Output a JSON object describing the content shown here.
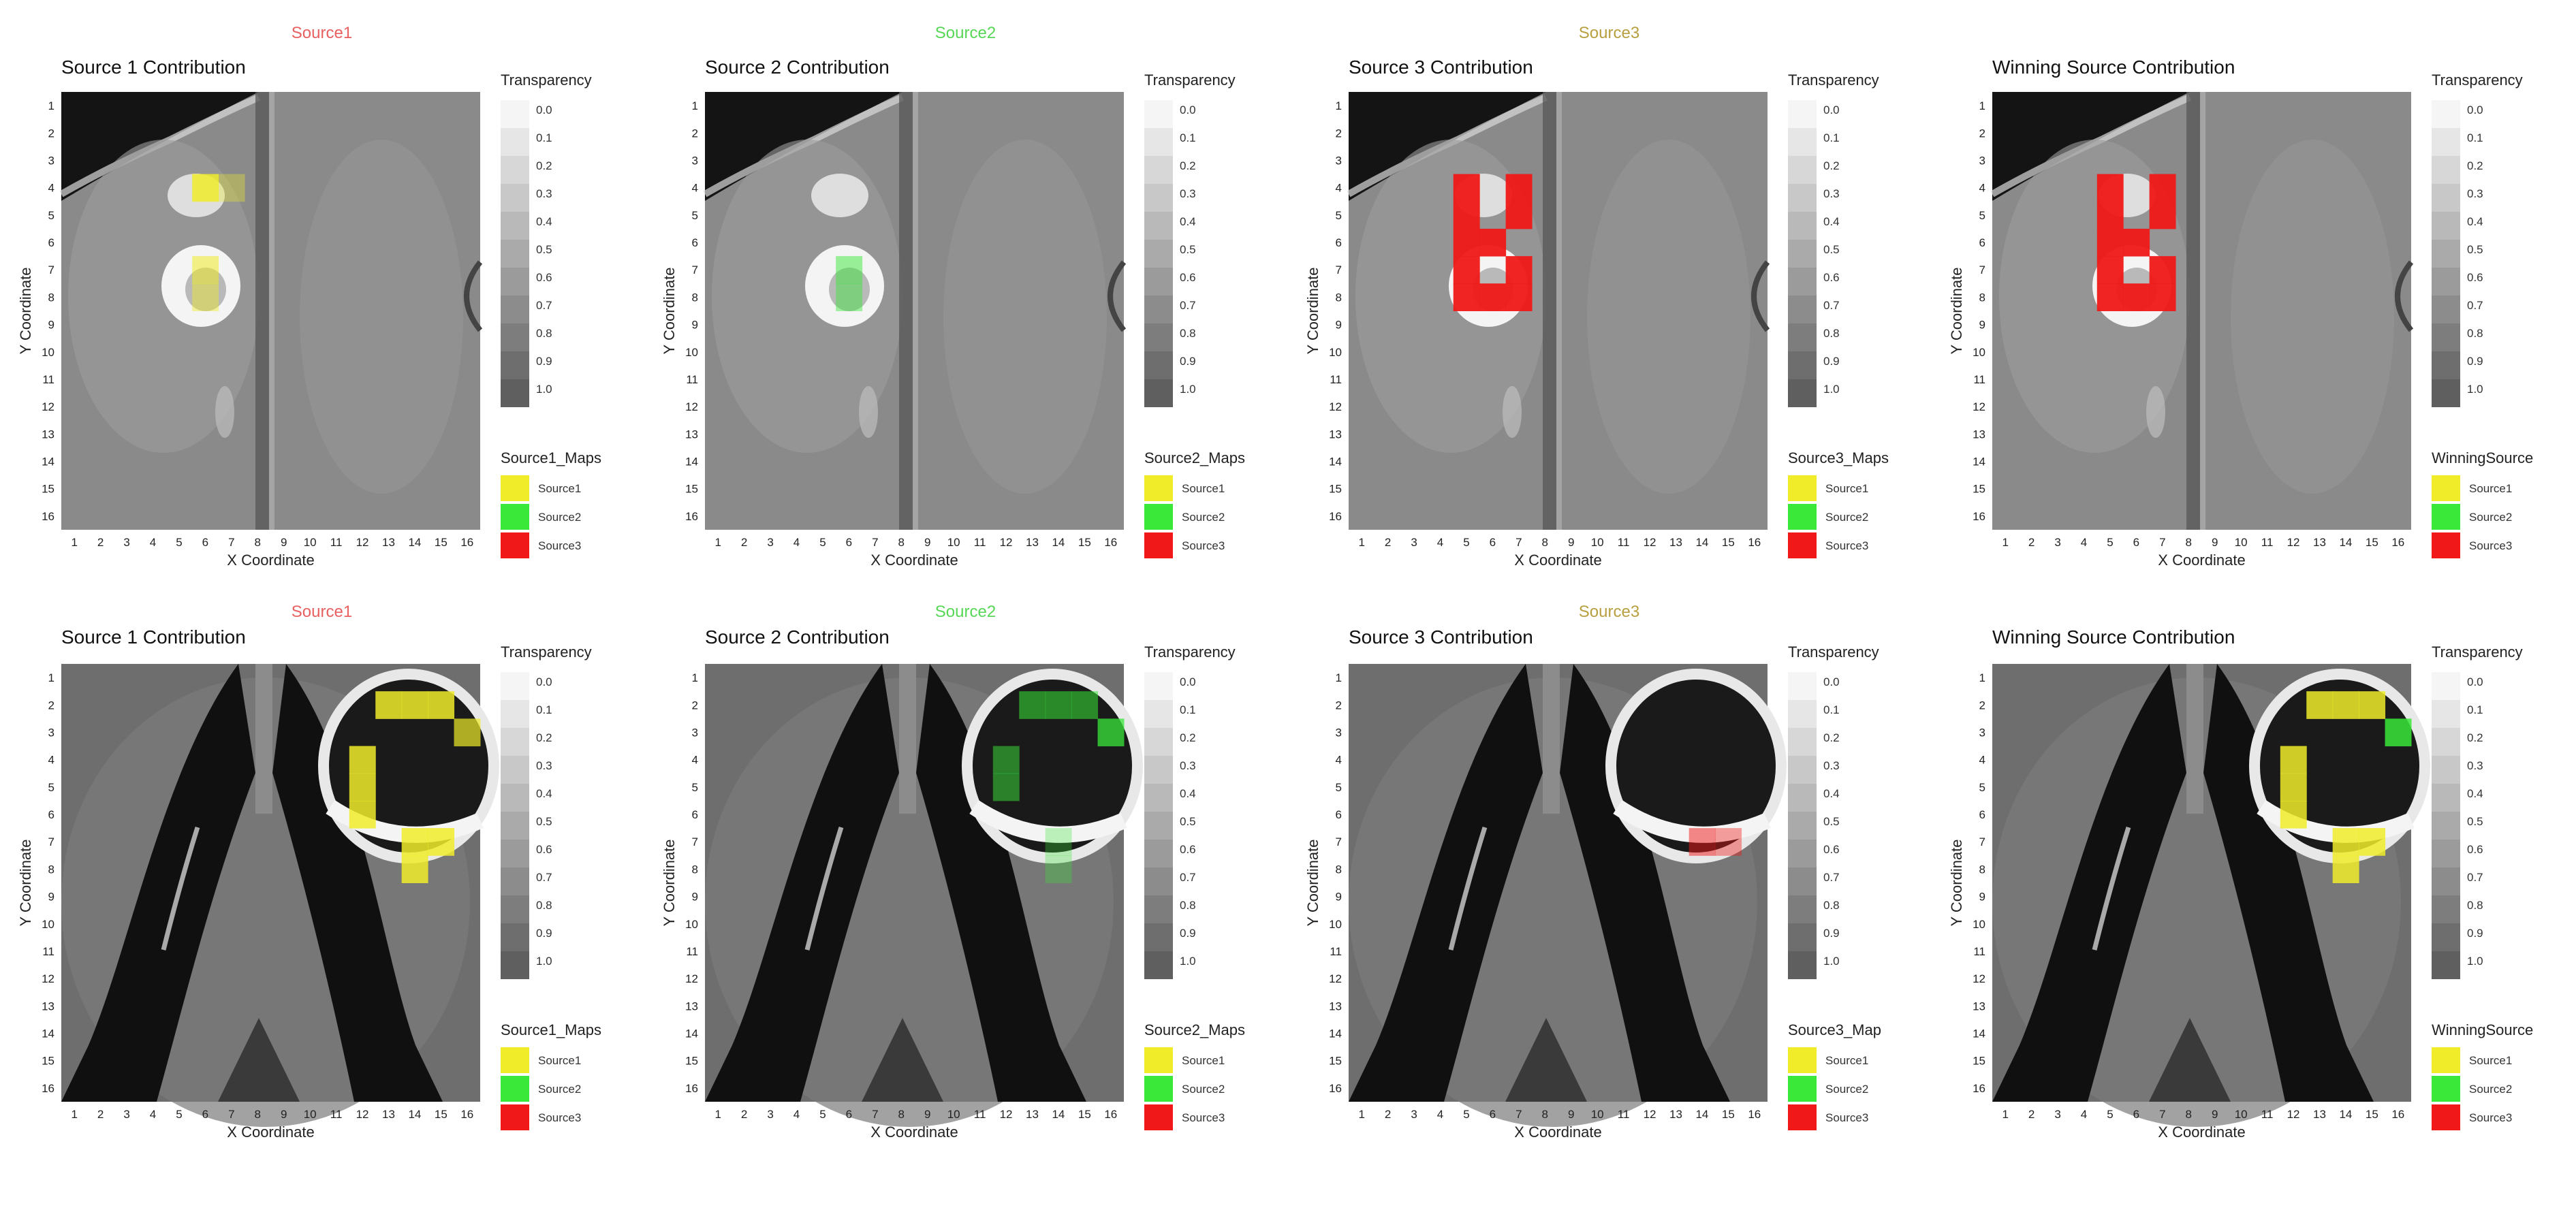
{
  "colors": {
    "Source1": "#f0ec2a",
    "Source2": "#39e839",
    "Source3": "#f01818",
    "source_title_1": "#e86060",
    "source_title_2": "#56d856",
    "source_title_3": "#b8a040"
  },
  "legend_common": {
    "transparency_title": "Transparency",
    "transparency_levels": [
      "0.0",
      "0.1",
      "0.2",
      "0.3",
      "0.4",
      "0.5",
      "0.6",
      "0.7",
      "0.8",
      "0.9",
      "1.0"
    ],
    "source_items": [
      "Source1",
      "Source2",
      "Source3"
    ],
    "xlabel": "X Coordinate",
    "ylabel": "Y Coordinate",
    "x_ticks": [
      "1",
      "2",
      "3",
      "4",
      "5",
      "6",
      "7",
      "8",
      "9",
      "10",
      "11",
      "12",
      "13",
      "14",
      "15",
      "16"
    ],
    "y_ticks": [
      "1",
      "2",
      "3",
      "4",
      "5",
      "6",
      "7",
      "8",
      "9",
      "10",
      "11",
      "12",
      "13",
      "14",
      "15",
      "16"
    ]
  },
  "chart_data": [
    {
      "type": "heatmap",
      "row": 1,
      "col": 1,
      "background": "mri-top",
      "source_title": "Source1",
      "source_key": "Source1",
      "title": "Source 1 Contribution",
      "map_legend_title": "Source1_Maps",
      "xlim": [
        1,
        16
      ],
      "ylim": [
        1,
        16
      ],
      "cells": [
        {
          "x": 6,
          "y": 4,
          "source": "Source1",
          "alpha": 0.85
        },
        {
          "x": 7,
          "y": 4,
          "source": "Source1",
          "alpha": 0.35
        },
        {
          "x": 6,
          "y": 7,
          "source": "Source1",
          "alpha": 0.55
        },
        {
          "x": 6,
          "y": 8,
          "source": "Source1",
          "alpha": 0.45
        }
      ]
    },
    {
      "type": "heatmap",
      "row": 1,
      "col": 2,
      "background": "mri-top",
      "source_title": "Source2",
      "source_key": "Source2",
      "title": "Source 2 Contribution",
      "map_legend_title": "Source2_Maps",
      "xlim": [
        1,
        16
      ],
      "ylim": [
        1,
        16
      ],
      "cells": [
        {
          "x": 6,
          "y": 7,
          "source": "Source2",
          "alpha": 0.5
        },
        {
          "x": 6,
          "y": 8,
          "source": "Source2",
          "alpha": 0.45
        }
      ]
    },
    {
      "type": "heatmap",
      "row": 1,
      "col": 3,
      "background": "mri-top",
      "source_title": "Source3",
      "source_key": "Source3",
      "title": "Source 3 Contribution",
      "map_legend_title": "Source3_Maps",
      "xlim": [
        1,
        16
      ],
      "ylim": [
        1,
        16
      ],
      "cells": [
        {
          "x": 5,
          "y": 4,
          "source": "Source3",
          "alpha": 0.95
        },
        {
          "x": 7,
          "y": 4,
          "source": "Source3",
          "alpha": 0.95
        },
        {
          "x": 5,
          "y": 5,
          "source": "Source3",
          "alpha": 0.95
        },
        {
          "x": 7,
          "y": 5,
          "source": "Source3",
          "alpha": 0.95
        },
        {
          "x": 5,
          "y": 6,
          "source": "Source3",
          "alpha": 0.95
        },
        {
          "x": 6,
          "y": 6,
          "source": "Source3",
          "alpha": 0.95
        },
        {
          "x": 5,
          "y": 7,
          "source": "Source3",
          "alpha": 0.95
        },
        {
          "x": 7,
          "y": 7,
          "source": "Source3",
          "alpha": 0.95
        },
        {
          "x": 5,
          "y": 8,
          "source": "Source3",
          "alpha": 0.95
        },
        {
          "x": 6,
          "y": 8,
          "source": "Source3",
          "alpha": 0.95
        },
        {
          "x": 7,
          "y": 8,
          "source": "Source3",
          "alpha": 0.95
        }
      ]
    },
    {
      "type": "heatmap",
      "row": 1,
      "col": 4,
      "background": "mri-top",
      "source_title": "",
      "source_key": "",
      "title": "Winning Source Contribution",
      "map_legend_title": "WinningSource",
      "xlim": [
        1,
        16
      ],
      "ylim": [
        1,
        16
      ],
      "cells": [
        {
          "x": 5,
          "y": 4,
          "source": "Source3",
          "alpha": 0.95
        },
        {
          "x": 7,
          "y": 4,
          "source": "Source3",
          "alpha": 0.95
        },
        {
          "x": 5,
          "y": 5,
          "source": "Source3",
          "alpha": 0.95
        },
        {
          "x": 7,
          "y": 5,
          "source": "Source3",
          "alpha": 0.95
        },
        {
          "x": 5,
          "y": 6,
          "source": "Source3",
          "alpha": 0.95
        },
        {
          "x": 6,
          "y": 6,
          "source": "Source3",
          "alpha": 0.95
        },
        {
          "x": 5,
          "y": 7,
          "source": "Source3",
          "alpha": 0.95
        },
        {
          "x": 7,
          "y": 7,
          "source": "Source3",
          "alpha": 0.95
        },
        {
          "x": 5,
          "y": 8,
          "source": "Source3",
          "alpha": 0.95
        },
        {
          "x": 6,
          "y": 8,
          "source": "Source3",
          "alpha": 0.95
        },
        {
          "x": 7,
          "y": 8,
          "source": "Source3",
          "alpha": 0.95
        }
      ]
    },
    {
      "type": "heatmap",
      "row": 2,
      "col": 1,
      "background": "mri-bottom",
      "source_title": "Source1",
      "source_key": "Source1",
      "title": "Source 1 Contribution",
      "map_legend_title": "Source1_Maps",
      "xlim": [
        1,
        16
      ],
      "ylim": [
        1,
        16
      ],
      "cells": [
        {
          "x": 13,
          "y": 2,
          "source": "Source1",
          "alpha": 0.85
        },
        {
          "x": 14,
          "y": 2,
          "source": "Source1",
          "alpha": 0.85
        },
        {
          "x": 15,
          "y": 2,
          "source": "Source1",
          "alpha": 0.85
        },
        {
          "x": 16,
          "y": 3,
          "source": "Source1",
          "alpha": 0.7
        },
        {
          "x": 12,
          "y": 4,
          "source": "Source1",
          "alpha": 0.85
        },
        {
          "x": 12,
          "y": 5,
          "source": "Source1",
          "alpha": 0.85
        },
        {
          "x": 12,
          "y": 6,
          "source": "Source1",
          "alpha": 0.85
        },
        {
          "x": 14,
          "y": 7,
          "source": "Source1",
          "alpha": 0.85
        },
        {
          "x": 15,
          "y": 7,
          "source": "Source1",
          "alpha": 0.85
        },
        {
          "x": 14,
          "y": 8,
          "source": "Source1",
          "alpha": 0.85
        }
      ]
    },
    {
      "type": "heatmap",
      "row": 2,
      "col": 2,
      "background": "mri-bottom",
      "source_title": "Source2",
      "source_key": "Source2",
      "title": "Source 2 Contribution",
      "map_legend_title": "Source2_Maps",
      "xlim": [
        1,
        16
      ],
      "ylim": [
        1,
        16
      ],
      "cells": [
        {
          "x": 13,
          "y": 2,
          "source": "Source2",
          "alpha": 0.55
        },
        {
          "x": 14,
          "y": 2,
          "source": "Source2",
          "alpha": 0.55
        },
        {
          "x": 15,
          "y": 2,
          "source": "Source2",
          "alpha": 0.55
        },
        {
          "x": 16,
          "y": 3,
          "source": "Source2",
          "alpha": 0.75
        },
        {
          "x": 12,
          "y": 4,
          "source": "Source2",
          "alpha": 0.5
        },
        {
          "x": 12,
          "y": 5,
          "source": "Source2",
          "alpha": 0.5
        },
        {
          "x": 14,
          "y": 7,
          "source": "Source2",
          "alpha": 0.3
        },
        {
          "x": 14,
          "y": 8,
          "source": "Source2",
          "alpha": 0.3
        }
      ]
    },
    {
      "type": "heatmap",
      "row": 2,
      "col": 3,
      "background": "mri-bottom",
      "source_title": "Source3",
      "source_key": "Source3",
      "title": "Source 3 Contribution",
      "map_legend_title": "Source3_Map",
      "xlim": [
        1,
        16
      ],
      "ylim": [
        1,
        16
      ],
      "cells": [
        {
          "x": 14,
          "y": 7,
          "source": "Source3",
          "alpha": 0.5
        },
        {
          "x": 15,
          "y": 7,
          "source": "Source3",
          "alpha": 0.4
        }
      ]
    },
    {
      "type": "heatmap",
      "row": 2,
      "col": 4,
      "background": "mri-bottom",
      "source_title": "",
      "source_key": "",
      "title": "Winning Source Contribution",
      "map_legend_title": "WinningSource",
      "xlim": [
        1,
        16
      ],
      "ylim": [
        1,
        16
      ],
      "cells": [
        {
          "x": 13,
          "y": 2,
          "source": "Source1",
          "alpha": 0.85
        },
        {
          "x": 14,
          "y": 2,
          "source": "Source1",
          "alpha": 0.85
        },
        {
          "x": 15,
          "y": 2,
          "source": "Source1",
          "alpha": 0.85
        },
        {
          "x": 16,
          "y": 3,
          "source": "Source2",
          "alpha": 0.85
        },
        {
          "x": 12,
          "y": 4,
          "source": "Source1",
          "alpha": 0.85
        },
        {
          "x": 12,
          "y": 5,
          "source": "Source1",
          "alpha": 0.85
        },
        {
          "x": 12,
          "y": 6,
          "source": "Source1",
          "alpha": 0.85
        },
        {
          "x": 14,
          "y": 7,
          "source": "Source1",
          "alpha": 0.85
        },
        {
          "x": 15,
          "y": 7,
          "source": "Source1",
          "alpha": 0.85
        },
        {
          "x": 14,
          "y": 8,
          "source": "Source1",
          "alpha": 0.85
        }
      ]
    }
  ]
}
